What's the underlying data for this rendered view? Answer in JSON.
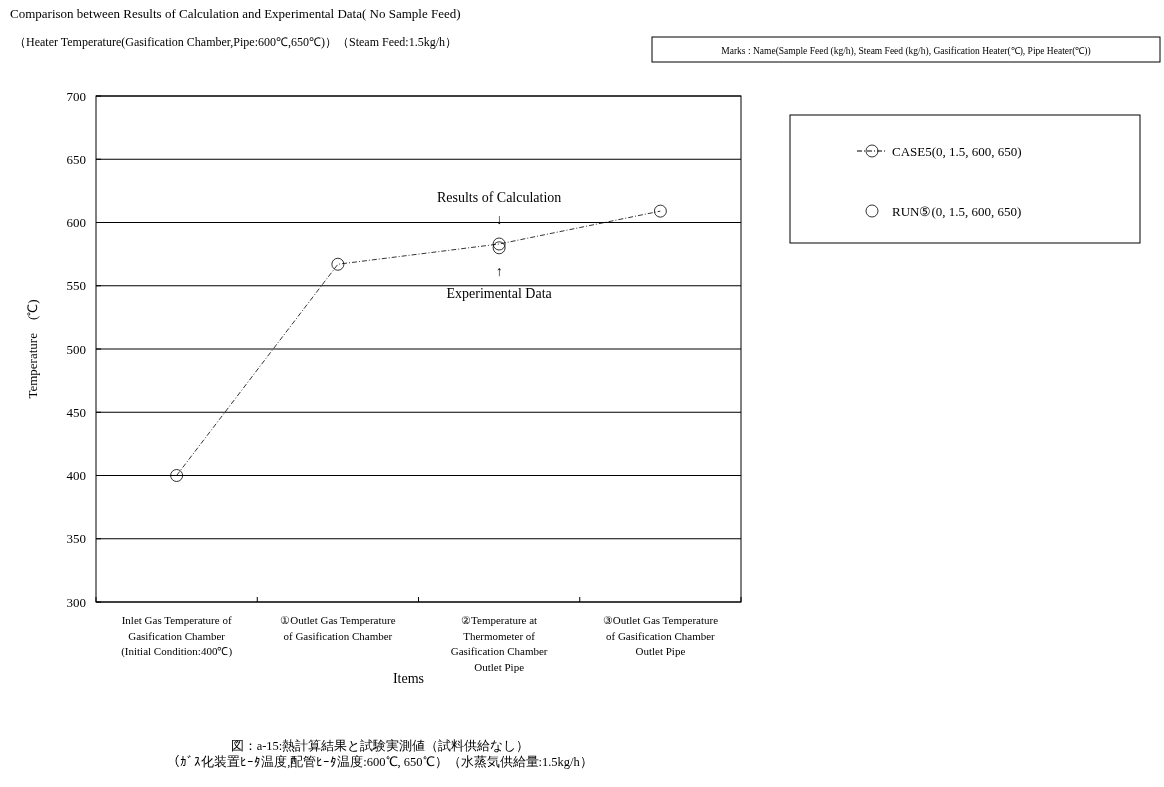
{
  "chart_data": {
    "type": "line",
    "title": "Comparison between Results of Calculation and Experimental Data( No Sample Feed)",
    "subtitle": "（Heater Temperature(Gasification Chamber,Pipe:600℃,650℃)）（Steam Feed:1.5kg/h）",
    "xlabel": "Items",
    "ylabel": "Temperature　(℃)",
    "categories": [
      "Inlet Gas Temperature of\nGasification Chamber\n(Initial Condition:400℃)",
      "①Outlet Gas Temperature\nof Gasification Chamber",
      "②Temperature at\nThermometer of\nGasification Chamber\nOutlet Pipe",
      "③Outlet Gas Temperature\nof Gasification Chamber\nOutlet Pipe"
    ],
    "series": [
      {
        "name": "CASE5(0, 1.5, 600, 650)",
        "color": "#000000",
        "values": [
          400,
          567,
          583,
          609
        ],
        "marker": "circle",
        "line_style": "dashed"
      },
      {
        "name": "RUN⑤(0, 1.5, 600, 650)",
        "color": "#000000",
        "type": "scatter",
        "values": [
          null,
          null,
          580,
          null
        ],
        "marker": "circle"
      }
    ],
    "ylim": [
      300,
      700
    ],
    "yticks": [
      300,
      350,
      400,
      450,
      500,
      550,
      600,
      650,
      700
    ],
    "grid": "y",
    "legend": "right",
    "annotations": [
      {
        "text": "Results of Calculation\n↓",
        "x": "②Temperature at\nThermometer of\nGasification Chamber\nOutlet Pipe",
        "y": 583
      },
      {
        "text": "↑\nExperimental Data",
        "x": "②Temperature at\nThermometer of\nGasification Chamber\nOutlet Pipe",
        "y": 580
      },
      "Marks : Name(Sample Feed (kg/h), Steam Feed (kg/h), Gasification Heater(℃), Pipe Heater(℃))",
      "図：a-15:熱計算結果と試験実測値（試料供給なし）",
      "（ｶﾞｽ化装置ﾋｰﾀ温度,配管ﾋｰﾀ温度:600℃, 650℃）（水蒸気供給量:1.5kg/h）"
    ]
  }
}
